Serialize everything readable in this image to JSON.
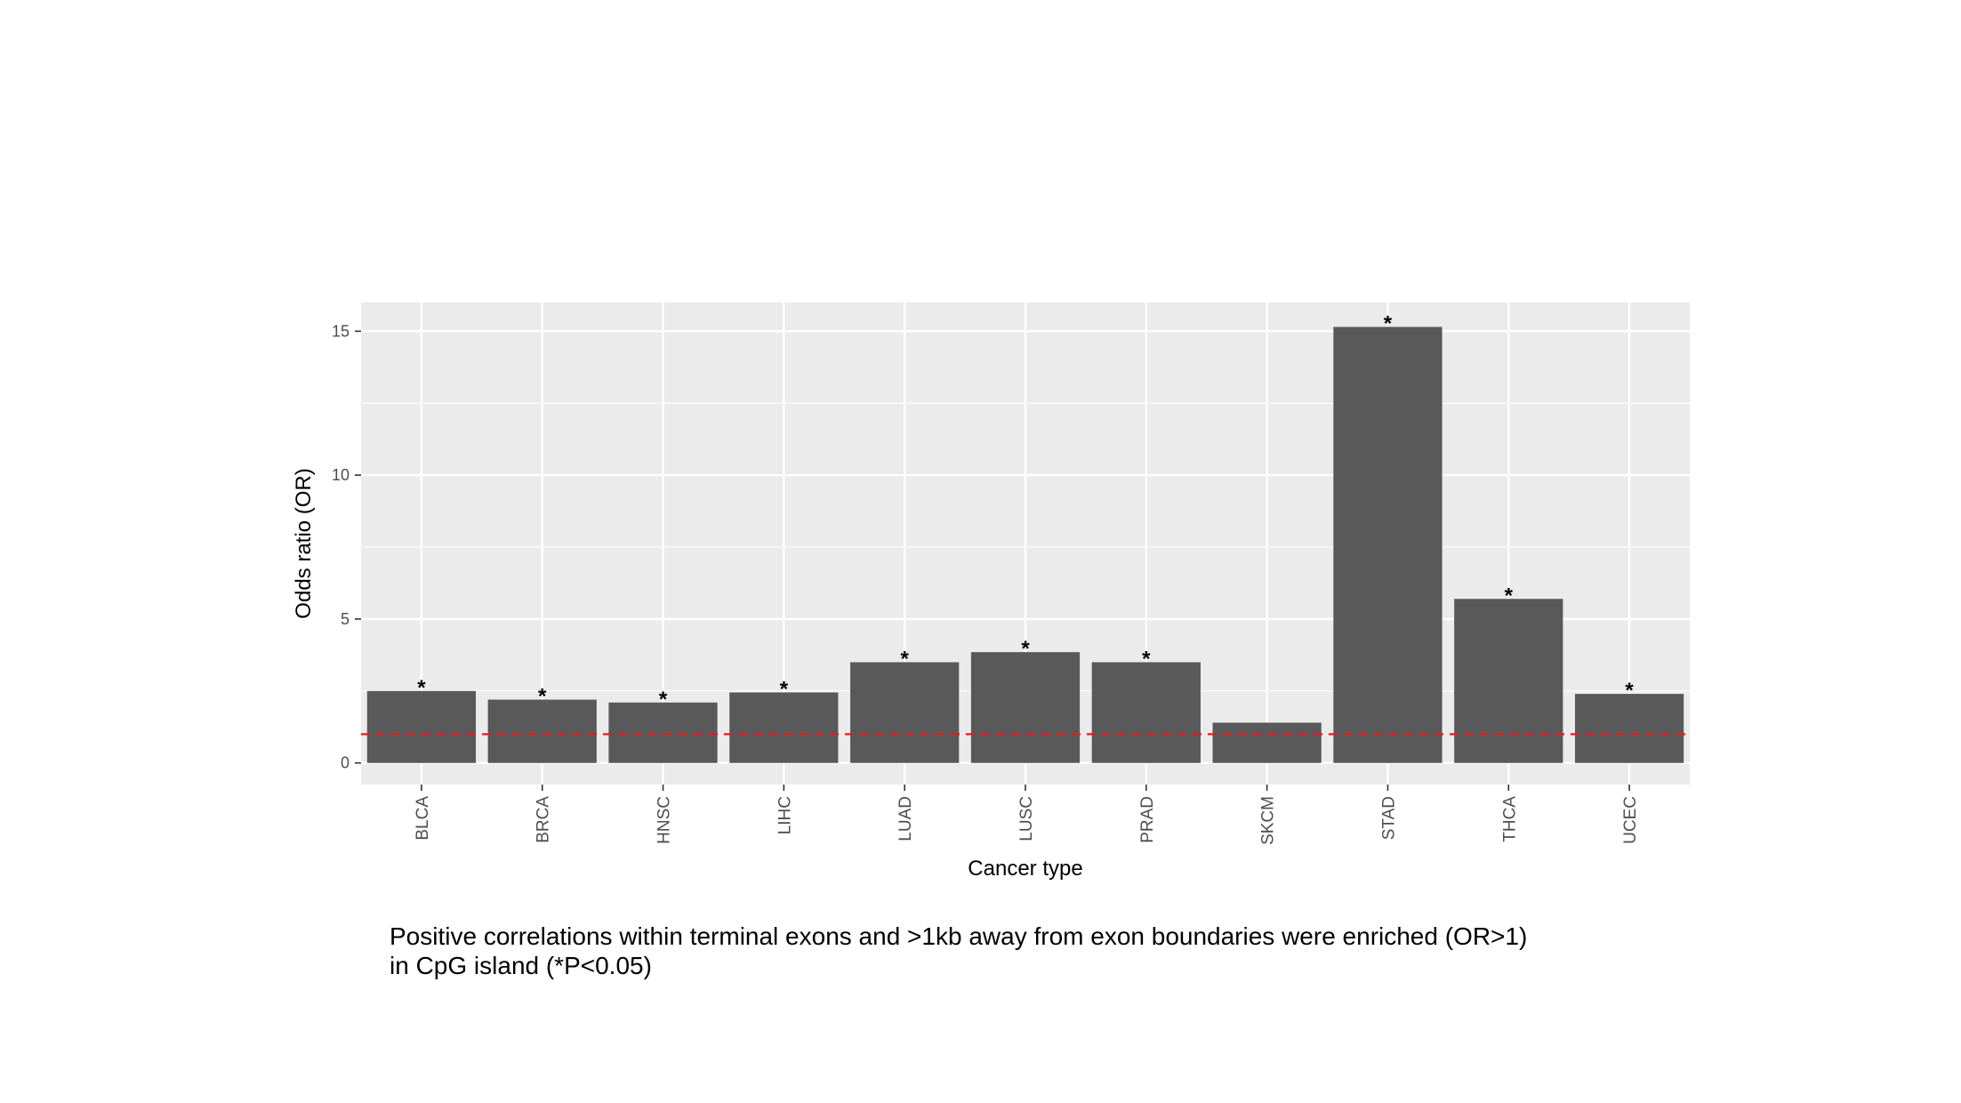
{
  "chart_data": {
    "type": "bar",
    "categories": [
      "BLCA",
      "BRCA",
      "HNSC",
      "LIHC",
      "LUAD",
      "LUSC",
      "PRAD",
      "SKCM",
      "STAD",
      "THCA",
      "UCEC"
    ],
    "values": [
      2.5,
      2.2,
      2.1,
      2.45,
      3.5,
      3.85,
      3.5,
      1.4,
      15.15,
      5.7,
      2.4
    ],
    "significant": [
      true,
      true,
      true,
      true,
      true,
      true,
      true,
      false,
      true,
      true,
      true
    ],
    "significance_marker": "*",
    "xlabel": "Cancer type",
    "ylabel": "Odds ratio (OR)",
    "ylim": [
      -0.75,
      16
    ],
    "yticks": [
      0,
      5,
      10,
      15
    ],
    "reference_line": {
      "value": 1,
      "style": "dashed",
      "color": "#e41a1c"
    },
    "bar_color": "#595959",
    "panel_background": "#ebebeb",
    "grid": true,
    "x_tick_rotation": "vertical"
  },
  "caption": {
    "line1": "Positive correlations within terminal exons and >1kb away from exon boundaries were enriched (OR>1)",
    "line2": "in CpG island (*P<0.05)"
  }
}
